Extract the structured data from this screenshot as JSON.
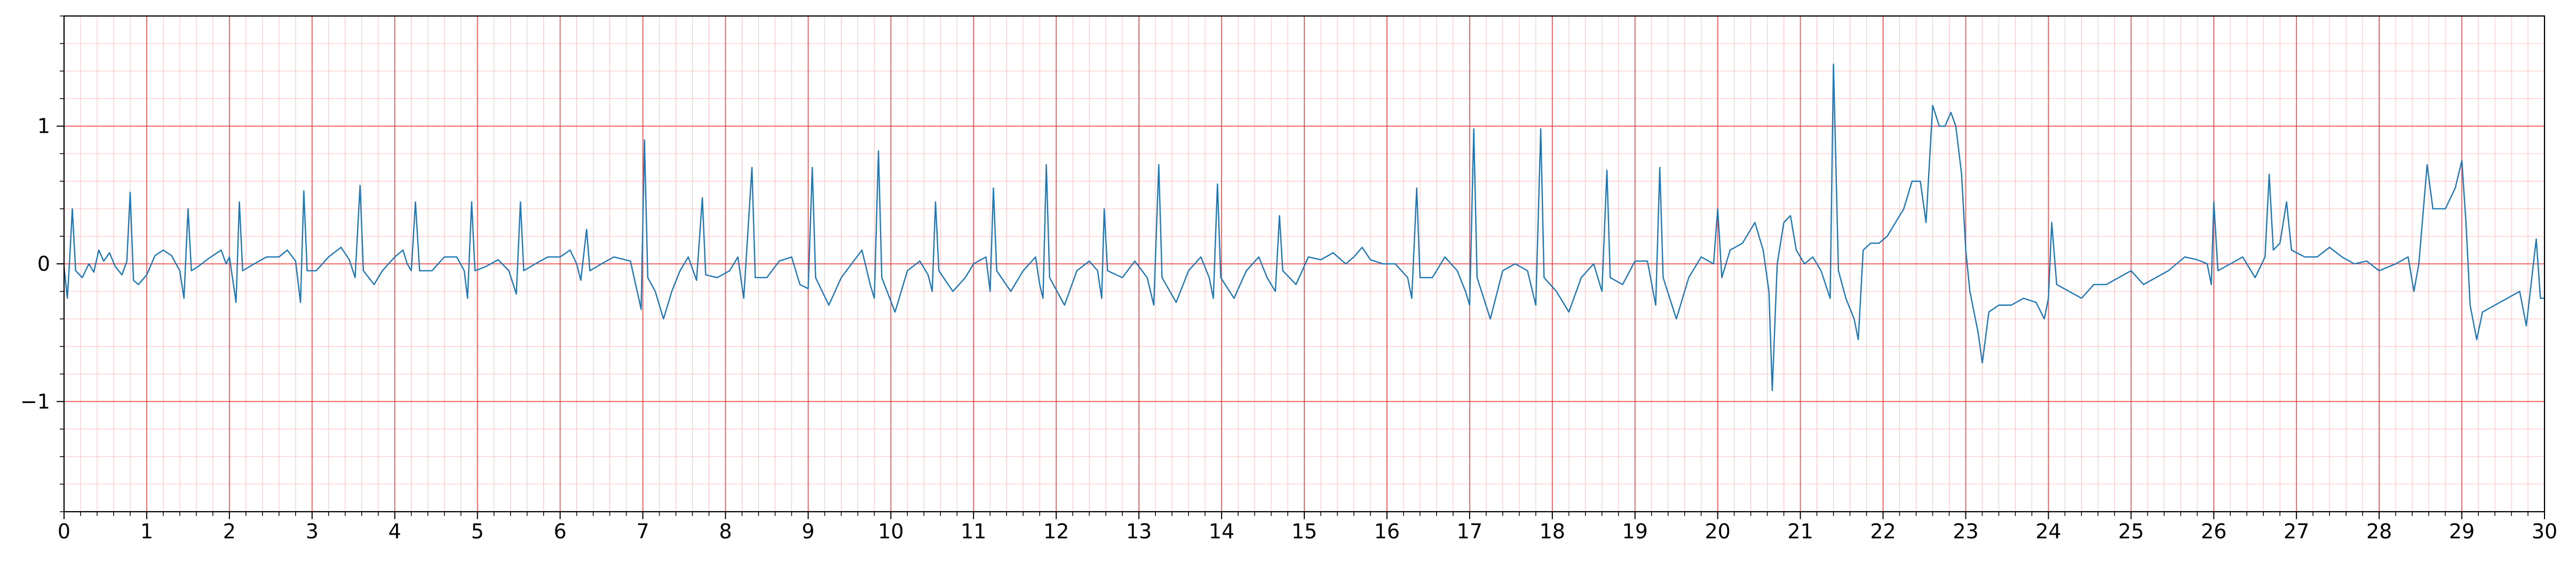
{
  "chart_data": {
    "type": "line",
    "title": "",
    "xlabel": "",
    "ylabel": "",
    "xlim": [
      0,
      30
    ],
    "ylim": [
      -1.8,
      1.8
    ],
    "x_ticks": [
      0,
      1,
      2,
      3,
      4,
      5,
      6,
      7,
      8,
      9,
      10,
      11,
      12,
      13,
      14,
      15,
      16,
      17,
      18,
      19,
      20,
      21,
      22,
      23,
      24,
      25,
      26,
      27,
      28,
      29,
      30
    ],
    "x_tick_labels": [
      "0",
      "1",
      "2",
      "3",
      "4",
      "5",
      "6",
      "7",
      "8",
      "9",
      "10",
      "11",
      "12",
      "13",
      "14",
      "15",
      "16",
      "17",
      "18",
      "19",
      "20",
      "21",
      "22",
      "23",
      "24",
      "25",
      "26",
      "27",
      "28",
      "29",
      "30"
    ],
    "y_ticks": [
      -1,
      0,
      1
    ],
    "y_tick_labels": [
      "−1",
      "0",
      "1"
    ],
    "grid": {
      "major": true,
      "minor": true,
      "major_x_step": 1,
      "minor_x_step": 0.2,
      "major_y_step": 1,
      "minor_y_step": 0.2
    },
    "series": [
      {
        "color": "#1f77b4",
        "points": [
          [
            0.0,
            -0.02
          ],
          [
            0.04,
            -0.25
          ],
          [
            0.07,
            0.05
          ],
          [
            0.1,
            0.4
          ],
          [
            0.14,
            -0.05
          ],
          [
            0.22,
            -0.1
          ],
          [
            0.3,
            0.0
          ],
          [
            0.36,
            -0.06
          ],
          [
            0.42,
            0.1
          ],
          [
            0.48,
            0.02
          ],
          [
            0.55,
            0.08
          ],
          [
            0.62,
            -0.02
          ],
          [
            0.7,
            -0.08
          ],
          [
            0.76,
            0.02
          ],
          [
            0.8,
            0.52
          ],
          [
            0.84,
            -0.12
          ],
          [
            0.9,
            -0.15
          ],
          [
            1.0,
            -0.08
          ],
          [
            1.1,
            0.06
          ],
          [
            1.2,
            0.1
          ],
          [
            1.3,
            0.06
          ],
          [
            1.4,
            -0.05
          ],
          [
            1.45,
            -0.25
          ],
          [
            1.5,
            0.4
          ],
          [
            1.54,
            -0.05
          ],
          [
            1.62,
            -0.02
          ],
          [
            1.75,
            0.04
          ],
          [
            1.9,
            0.1
          ],
          [
            1.96,
            0.0
          ],
          [
            2.0,
            0.05
          ],
          [
            2.08,
            -0.28
          ],
          [
            2.12,
            0.45
          ],
          [
            2.16,
            -0.05
          ],
          [
            2.3,
            0.0
          ],
          [
            2.45,
            0.05
          ],
          [
            2.6,
            0.05
          ],
          [
            2.7,
            0.1
          ],
          [
            2.8,
            0.02
          ],
          [
            2.86,
            -0.28
          ],
          [
            2.9,
            0.53
          ],
          [
            2.94,
            -0.05
          ],
          [
            3.05,
            -0.05
          ],
          [
            3.2,
            0.05
          ],
          [
            3.35,
            0.12
          ],
          [
            3.45,
            0.03
          ],
          [
            3.52,
            -0.1
          ],
          [
            3.58,
            0.57
          ],
          [
            3.62,
            -0.05
          ],
          [
            3.75,
            -0.15
          ],
          [
            3.85,
            -0.05
          ],
          [
            4.0,
            0.05
          ],
          [
            4.1,
            0.1
          ],
          [
            4.15,
            0.0
          ],
          [
            4.2,
            -0.05
          ],
          [
            4.25,
            0.45
          ],
          [
            4.3,
            -0.05
          ],
          [
            4.45,
            -0.05
          ],
          [
            4.6,
            0.05
          ],
          [
            4.75,
            0.05
          ],
          [
            4.84,
            -0.05
          ],
          [
            4.88,
            -0.25
          ],
          [
            4.93,
            0.45
          ],
          [
            4.97,
            -0.05
          ],
          [
            5.1,
            -0.02
          ],
          [
            5.25,
            0.03
          ],
          [
            5.38,
            -0.05
          ],
          [
            5.47,
            -0.22
          ],
          [
            5.52,
            0.45
          ],
          [
            5.56,
            -0.05
          ],
          [
            5.7,
            0.0
          ],
          [
            5.85,
            0.05
          ],
          [
            6.0,
            0.05
          ],
          [
            6.12,
            0.1
          ],
          [
            6.2,
            0.0
          ],
          [
            6.25,
            -0.12
          ],
          [
            6.32,
            0.25
          ],
          [
            6.36,
            -0.05
          ],
          [
            6.5,
            0.0
          ],
          [
            6.65,
            0.05
          ],
          [
            6.85,
            0.02
          ],
          [
            6.98,
            -0.33
          ],
          [
            7.02,
            0.9
          ],
          [
            7.06,
            -0.1
          ],
          [
            7.15,
            -0.2
          ],
          [
            7.25,
            -0.4
          ],
          [
            7.35,
            -0.2
          ],
          [
            7.45,
            -0.05
          ],
          [
            7.55,
            0.05
          ],
          [
            7.65,
            -0.12
          ],
          [
            7.72,
            0.48
          ],
          [
            7.76,
            -0.08
          ],
          [
            7.9,
            -0.1
          ],
          [
            8.05,
            -0.05
          ],
          [
            8.15,
            0.05
          ],
          [
            8.22,
            -0.25
          ],
          [
            8.32,
            0.7
          ],
          [
            8.36,
            -0.1
          ],
          [
            8.5,
            -0.1
          ],
          [
            8.65,
            0.02
          ],
          [
            8.8,
            0.05
          ],
          [
            8.9,
            -0.15
          ],
          [
            9.0,
            -0.18
          ],
          [
            9.05,
            0.7
          ],
          [
            9.09,
            -0.1
          ],
          [
            9.25,
            -0.3
          ],
          [
            9.4,
            -0.1
          ],
          [
            9.55,
            0.02
          ],
          [
            9.65,
            0.1
          ],
          [
            9.75,
            -0.15
          ],
          [
            9.8,
            -0.25
          ],
          [
            9.85,
            0.82
          ],
          [
            9.89,
            -0.1
          ],
          [
            10.05,
            -0.35
          ],
          [
            10.2,
            -0.05
          ],
          [
            10.35,
            0.02
          ],
          [
            10.45,
            -0.08
          ],
          [
            10.5,
            -0.2
          ],
          [
            10.54,
            0.45
          ],
          [
            10.58,
            -0.05
          ],
          [
            10.75,
            -0.2
          ],
          [
            10.9,
            -0.1
          ],
          [
            11.0,
            0.0
          ],
          [
            11.15,
            0.05
          ],
          [
            11.2,
            -0.2
          ],
          [
            11.24,
            0.55
          ],
          [
            11.28,
            -0.05
          ],
          [
            11.45,
            -0.2
          ],
          [
            11.6,
            -0.05
          ],
          [
            11.75,
            0.05
          ],
          [
            11.8,
            -0.15
          ],
          [
            11.84,
            -0.25
          ],
          [
            11.88,
            0.72
          ],
          [
            11.92,
            -0.1
          ],
          [
            12.1,
            -0.3
          ],
          [
            12.25,
            -0.05
          ],
          [
            12.4,
            0.02
          ],
          [
            12.5,
            -0.05
          ],
          [
            12.55,
            -0.25
          ],
          [
            12.58,
            0.4
          ],
          [
            12.62,
            -0.05
          ],
          [
            12.8,
            -0.1
          ],
          [
            12.95,
            0.02
          ],
          [
            13.1,
            -0.1
          ],
          [
            13.18,
            -0.3
          ],
          [
            13.24,
            0.72
          ],
          [
            13.28,
            -0.1
          ],
          [
            13.45,
            -0.28
          ],
          [
            13.6,
            -0.05
          ],
          [
            13.75,
            0.05
          ],
          [
            13.85,
            -0.1
          ],
          [
            13.9,
            -0.25
          ],
          [
            13.95,
            0.58
          ],
          [
            13.99,
            -0.1
          ],
          [
            14.15,
            -0.25
          ],
          [
            14.3,
            -0.05
          ],
          [
            14.45,
            0.05
          ],
          [
            14.55,
            -0.1
          ],
          [
            14.65,
            -0.2
          ],
          [
            14.7,
            0.35
          ],
          [
            14.74,
            -0.05
          ],
          [
            14.9,
            -0.15
          ],
          [
            15.05,
            0.05
          ],
          [
            15.2,
            0.03
          ],
          [
            15.35,
            0.08
          ],
          [
            15.5,
            0.0
          ],
          [
            15.6,
            0.05
          ],
          [
            15.7,
            0.12
          ],
          [
            15.8,
            0.03
          ],
          [
            15.95,
            0.0
          ],
          [
            16.1,
            0.0
          ],
          [
            16.25,
            -0.1
          ],
          [
            16.3,
            -0.25
          ],
          [
            16.36,
            0.55
          ],
          [
            16.4,
            -0.1
          ],
          [
            16.55,
            -0.1
          ],
          [
            16.7,
            0.05
          ],
          [
            16.85,
            -0.05
          ],
          [
            16.95,
            -0.2
          ],
          [
            17.0,
            -0.3
          ],
          [
            17.05,
            0.98
          ],
          [
            17.09,
            -0.1
          ],
          [
            17.25,
            -0.4
          ],
          [
            17.4,
            -0.05
          ],
          [
            17.55,
            0.0
          ],
          [
            17.7,
            -0.05
          ],
          [
            17.8,
            -0.3
          ],
          [
            17.86,
            0.98
          ],
          [
            17.9,
            -0.1
          ],
          [
            18.05,
            -0.2
          ],
          [
            18.2,
            -0.35
          ],
          [
            18.35,
            -0.1
          ],
          [
            18.5,
            0.0
          ],
          [
            18.6,
            -0.2
          ],
          [
            18.66,
            0.68
          ],
          [
            18.7,
            -0.1
          ],
          [
            18.85,
            -0.15
          ],
          [
            19.0,
            0.02
          ],
          [
            19.15,
            0.02
          ],
          [
            19.25,
            -0.3
          ],
          [
            19.3,
            0.7
          ],
          [
            19.34,
            -0.1
          ],
          [
            19.5,
            -0.4
          ],
          [
            19.65,
            -0.1
          ],
          [
            19.8,
            0.05
          ],
          [
            19.95,
            0.0
          ],
          [
            20.0,
            0.4
          ],
          [
            20.05,
            -0.1
          ],
          [
            20.15,
            0.1
          ],
          [
            20.3,
            0.15
          ],
          [
            20.45,
            0.3
          ],
          [
            20.55,
            0.1
          ],
          [
            20.62,
            -0.2
          ],
          [
            20.66,
            -0.92
          ],
          [
            20.72,
            0.0
          ],
          [
            20.8,
            0.3
          ],
          [
            20.88,
            0.35
          ],
          [
            20.95,
            0.1
          ],
          [
            21.05,
            0.0
          ],
          [
            21.15,
            0.05
          ],
          [
            21.25,
            -0.05
          ],
          [
            21.36,
            -0.25
          ],
          [
            21.4,
            1.45
          ],
          [
            21.46,
            -0.05
          ],
          [
            21.55,
            -0.25
          ],
          [
            21.65,
            -0.4
          ],
          [
            21.7,
            -0.55
          ],
          [
            21.76,
            0.1
          ],
          [
            21.85,
            0.15
          ],
          [
            21.95,
            0.15
          ],
          [
            22.05,
            0.2
          ],
          [
            22.15,
            0.3
          ],
          [
            22.25,
            0.4
          ],
          [
            22.35,
            0.6
          ],
          [
            22.45,
            0.6
          ],
          [
            22.52,
            0.3
          ],
          [
            22.6,
            1.15
          ],
          [
            22.68,
            1.0
          ],
          [
            22.75,
            1.0
          ],
          [
            22.82,
            1.1
          ],
          [
            22.88,
            1.0
          ],
          [
            22.95,
            0.65
          ],
          [
            23.0,
            0.1
          ],
          [
            23.05,
            -0.2
          ],
          [
            23.15,
            -0.5
          ],
          [
            23.2,
            -0.72
          ],
          [
            23.28,
            -0.35
          ],
          [
            23.4,
            -0.3
          ],
          [
            23.55,
            -0.3
          ],
          [
            23.7,
            -0.25
          ],
          [
            23.85,
            -0.28
          ],
          [
            23.95,
            -0.4
          ],
          [
            24.0,
            -0.25
          ],
          [
            24.04,
            0.3
          ],
          [
            24.1,
            -0.15
          ],
          [
            24.25,
            -0.2
          ],
          [
            24.4,
            -0.25
          ],
          [
            24.55,
            -0.15
          ],
          [
            24.7,
            -0.15
          ],
          [
            24.85,
            -0.1
          ],
          [
            25.0,
            -0.05
          ],
          [
            25.15,
            -0.15
          ],
          [
            25.3,
            -0.1
          ],
          [
            25.45,
            -0.05
          ],
          [
            25.55,
            0.0
          ],
          [
            25.65,
            0.05
          ],
          [
            25.8,
            0.03
          ],
          [
            25.92,
            0.0
          ],
          [
            25.97,
            -0.15
          ],
          [
            26.0,
            0.45
          ],
          [
            26.05,
            -0.05
          ],
          [
            26.2,
            0.0
          ],
          [
            26.35,
            0.05
          ],
          [
            26.5,
            -0.1
          ],
          [
            26.62,
            0.05
          ],
          [
            26.67,
            0.65
          ],
          [
            26.72,
            0.1
          ],
          [
            26.8,
            0.15
          ],
          [
            26.88,
            0.45
          ],
          [
            26.94,
            0.1
          ],
          [
            27.1,
            0.05
          ],
          [
            27.25,
            0.05
          ],
          [
            27.4,
            0.12
          ],
          [
            27.55,
            0.05
          ],
          [
            27.7,
            0.0
          ],
          [
            27.85,
            0.02
          ],
          [
            28.0,
            -0.05
          ],
          [
            28.2,
            0.0
          ],
          [
            28.35,
            0.05
          ],
          [
            28.42,
            -0.2
          ],
          [
            28.48,
            0.0
          ],
          [
            28.58,
            0.72
          ],
          [
            28.65,
            0.4
          ],
          [
            28.8,
            0.4
          ],
          [
            28.92,
            0.55
          ],
          [
            29.0,
            0.75
          ],
          [
            29.05,
            0.3
          ],
          [
            29.1,
            -0.3
          ],
          [
            29.18,
            -0.55
          ],
          [
            29.25,
            -0.35
          ],
          [
            29.4,
            -0.3
          ],
          [
            29.55,
            -0.25
          ],
          [
            29.7,
            -0.2
          ],
          [
            29.78,
            -0.45
          ],
          [
            29.9,
            0.18
          ],
          [
            29.95,
            -0.25
          ],
          [
            30.0,
            -0.25
          ]
        ]
      }
    ]
  }
}
